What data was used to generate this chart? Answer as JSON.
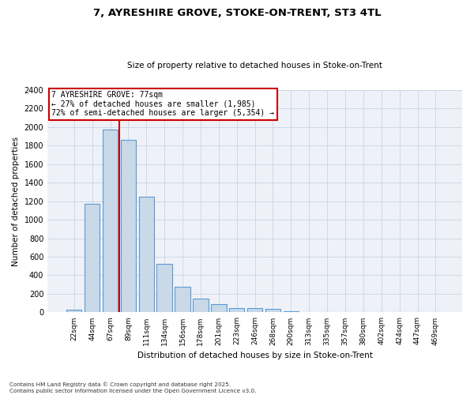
{
  "title1": "7, AYRESHIRE GROVE, STOKE-ON-TRENT, ST3 4TL",
  "title2": "Size of property relative to detached houses in Stoke-on-Trent",
  "xlabel": "Distribution of detached houses by size in Stoke-on-Trent",
  "ylabel": "Number of detached properties",
  "categories": [
    "22sqm",
    "44sqm",
    "67sqm",
    "89sqm",
    "111sqm",
    "134sqm",
    "156sqm",
    "178sqm",
    "201sqm",
    "223sqm",
    "246sqm",
    "268sqm",
    "290sqm",
    "313sqm",
    "335sqm",
    "357sqm",
    "380sqm",
    "402sqm",
    "424sqm",
    "447sqm",
    "469sqm"
  ],
  "values": [
    30,
    1175,
    1975,
    1860,
    1245,
    525,
    275,
    150,
    85,
    50,
    45,
    40,
    15,
    5,
    2,
    1,
    0,
    0,
    0,
    0,
    0
  ],
  "bar_color": "#c9d9e8",
  "bar_edge_color": "#5b9bd5",
  "vline_color": "#cc0000",
  "vline_x": 2.5,
  "annotation_title": "7 AYRESHIRE GROVE: 77sqm",
  "annotation_line1": "← 27% of detached houses are smaller (1,985)",
  "annotation_line2": "72% of semi-detached houses are larger (5,354) →",
  "annotation_box_color": "#cc0000",
  "ylim": [
    0,
    2400
  ],
  "yticks": [
    0,
    200,
    400,
    600,
    800,
    1000,
    1200,
    1400,
    1600,
    1800,
    2000,
    2200,
    2400
  ],
  "footer1": "Contains HM Land Registry data © Crown copyright and database right 2025.",
  "footer2": "Contains public sector information licensed under the Open Government Licence v3.0.",
  "grid_color": "#c8d4e4",
  "background_color": "#eef2f8"
}
